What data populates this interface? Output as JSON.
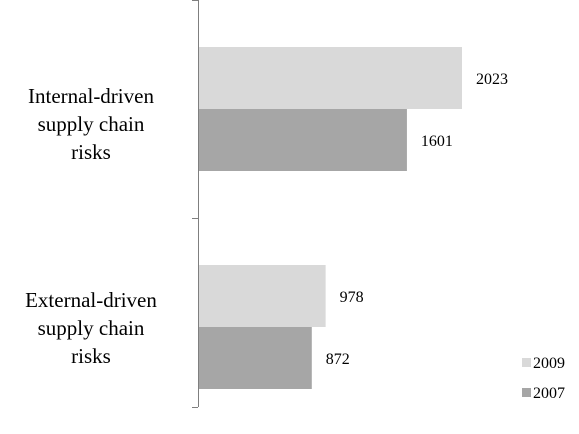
{
  "chart_data": {
    "type": "bar",
    "orientation": "horizontal",
    "categories": [
      [
        "Internal-driven",
        "supply chain",
        "risks"
      ],
      [
        "External-driven",
        "supply chain",
        "risks"
      ]
    ],
    "series": [
      {
        "name": "2009",
        "values": [
          2023,
          978
        ],
        "color": "#d9d9d9"
      },
      {
        "name": "2007",
        "values": [
          1601,
          872
        ],
        "color": "#a6a6a6"
      }
    ],
    "xlim": [
      0,
      2023
    ],
    "grid": false,
    "legend": "bottom-right",
    "title": "",
    "xlabel": "",
    "ylabel": ""
  }
}
